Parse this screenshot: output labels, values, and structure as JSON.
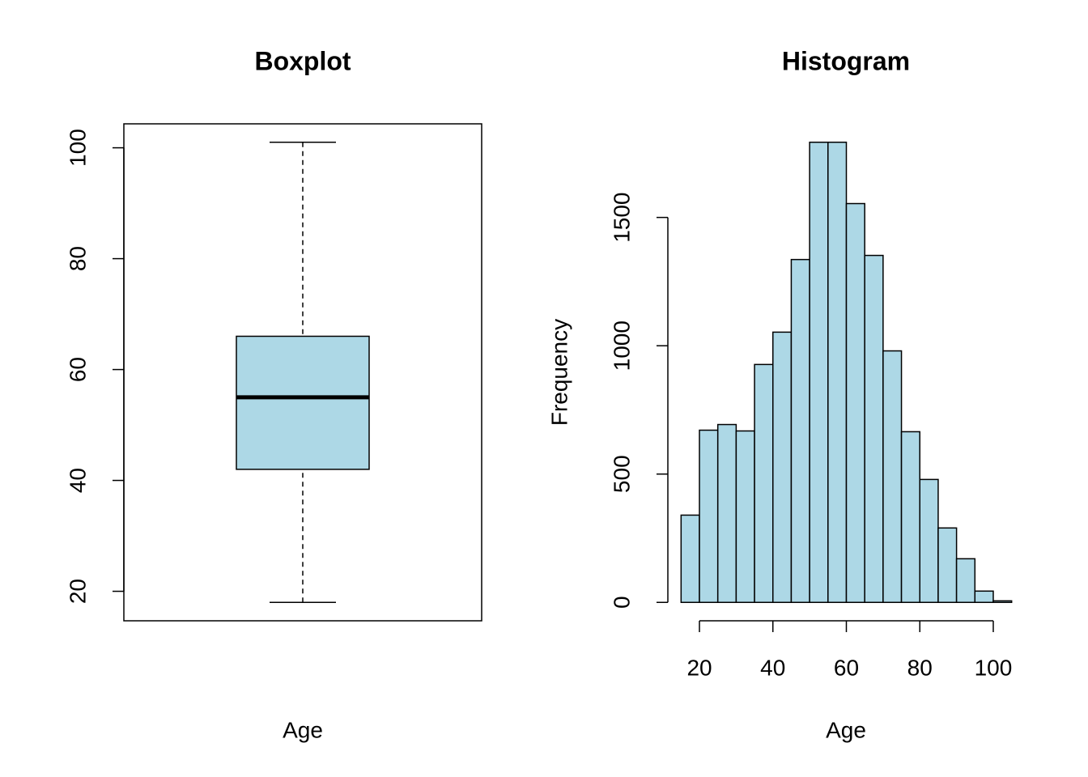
{
  "chart_data": [
    {
      "type": "box",
      "title": "Boxplot",
      "xlabel": "Age",
      "color": "#add8e6",
      "min": 18,
      "q1": 42,
      "median": 55,
      "q3": 66,
      "max": 101,
      "ylim": [
        14.68,
        104.32
      ],
      "yticks": [
        20,
        40,
        60,
        80,
        100
      ]
    },
    {
      "type": "histogram",
      "title": "Histogram",
      "xlabel": "Age",
      "ylabel": "Frequency",
      "color": "#add8e6",
      "bins": [
        15,
        20,
        25,
        30,
        35,
        40,
        45,
        50,
        55,
        60,
        65,
        70,
        75,
        80,
        85,
        90,
        95,
        100,
        105
      ],
      "values": [
        340,
        671,
        693,
        668,
        927,
        1053,
        1336,
        1793,
        1793,
        1554,
        1352,
        980,
        665,
        479,
        290,
        170,
        44,
        6
      ],
      "xlim": [
        11.4,
        108.6
      ],
      "xticks": [
        20,
        40,
        60,
        80,
        100
      ],
      "ylim": [
        -71.72,
        1864.72
      ],
      "yticks": [
        0,
        500,
        1000,
        1500
      ]
    }
  ]
}
